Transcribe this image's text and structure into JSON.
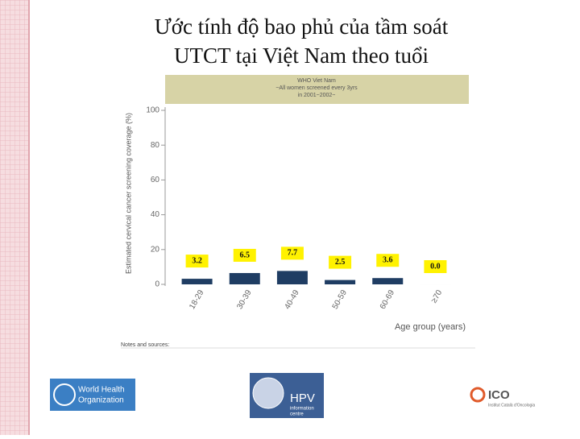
{
  "slide_title": "Ước tính độ bao phủ của tầm soát UTCT tại Việt Nam theo tuổi",
  "chart_data": {
    "type": "bar",
    "header": [
      "WHO Viet Nam",
      "~All women screened every 3yrs",
      "in 2001~2002~"
    ],
    "y_label": "Estimated cervical cancer screening coverage (%)",
    "x_label": "Age group (years)",
    "categories": [
      "18-29",
      "30-39",
      "40-49",
      "50-59",
      "60-69",
      "≥70"
    ],
    "values": [
      3.2,
      6.5,
      7.7,
      2.5,
      3.6,
      0.0
    ],
    "value_labels": [
      "3.2",
      "6.5",
      "7.7",
      "2.5",
      "3.6",
      "0.0"
    ],
    "color": "#1f3d63",
    "ylim": [
      0,
      100
    ],
    "yticks": [
      0,
      20,
      40,
      60,
      80,
      100
    ],
    "notes_title": "Notes and sources:"
  },
  "logos": {
    "who": [
      "World Health",
      "Organization"
    ],
    "hpv": [
      "HPV",
      "information",
      "centre"
    ],
    "ico": [
      "ICO",
      "Institut Català d'Oncologia"
    ]
  }
}
